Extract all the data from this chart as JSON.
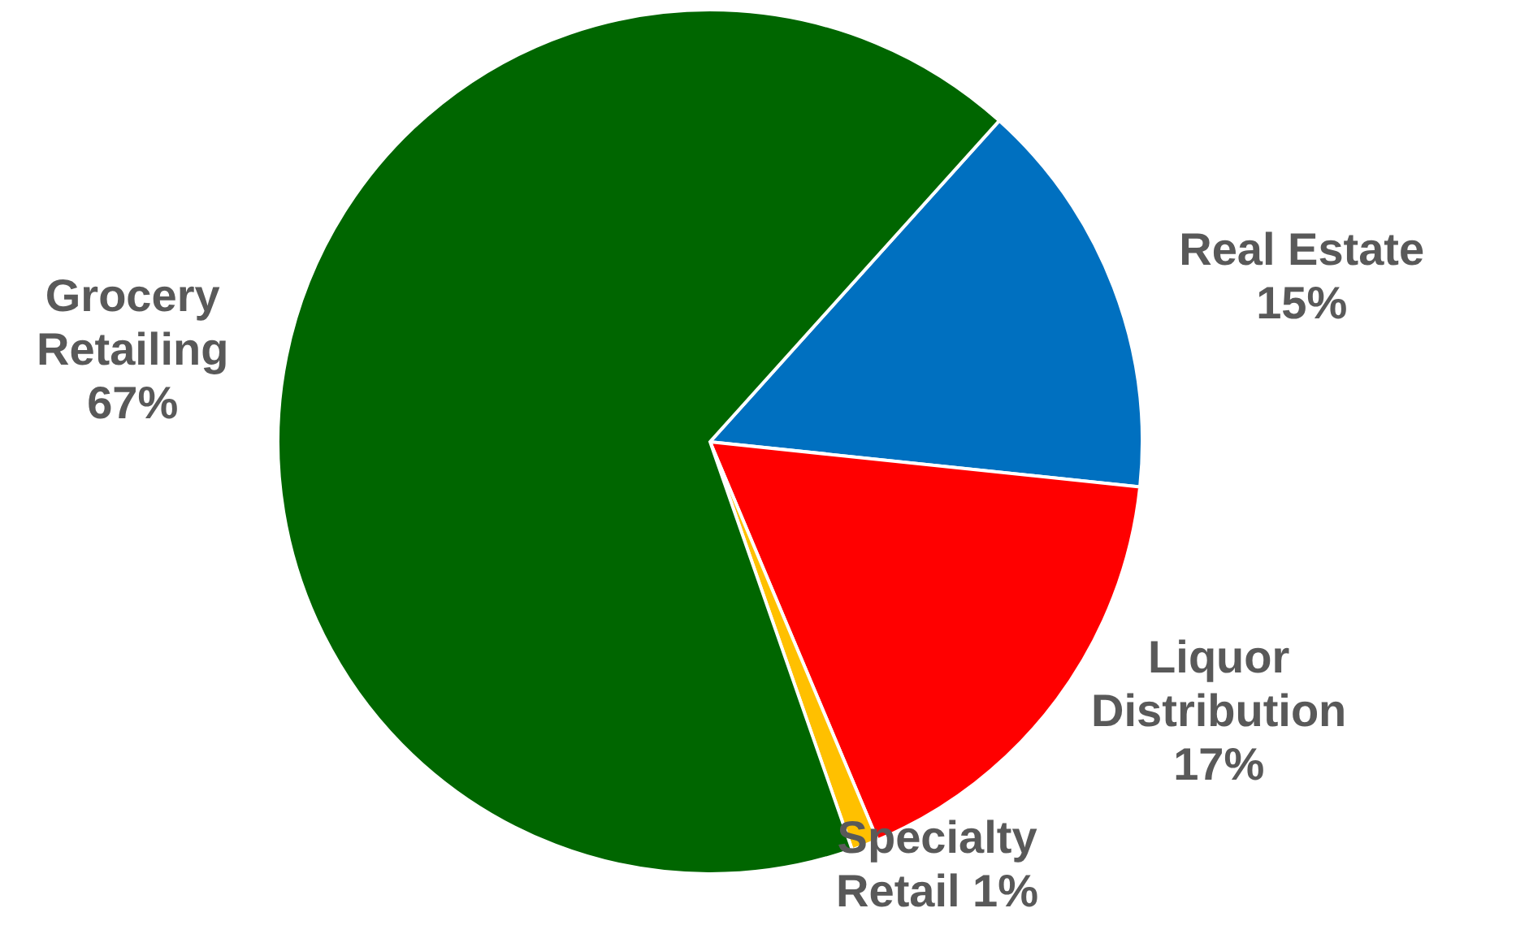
{
  "chart_data": {
    "type": "pie",
    "categories": [
      "Real Estate",
      "Liquor Distribution",
      "Specialty Retail",
      "Grocery Retailing"
    ],
    "values": [
      15,
      17,
      1,
      67
    ],
    "colors": [
      "#0070c0",
      "#ff0000",
      "#ffc000",
      "#006600"
    ],
    "value_labels": [
      "15%",
      "17%",
      "1%",
      "67%"
    ]
  }
}
